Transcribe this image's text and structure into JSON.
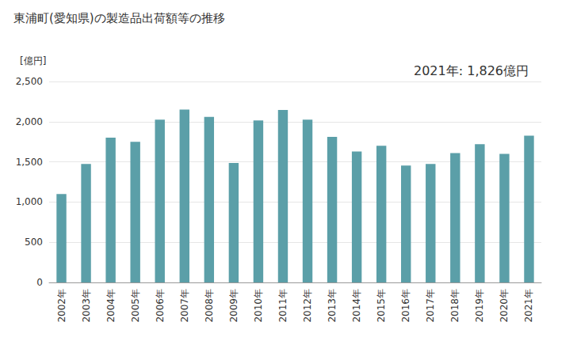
{
  "chart_data": {
    "type": "bar",
    "title": "東浦町(愛知県)の製造品出荷額等の推移",
    "y_label": "[億円]",
    "annotation": "2021年: 1,826億円",
    "categories": [
      "2002年",
      "2003年",
      "2004年",
      "2005年",
      "2006年",
      "2007年",
      "2008年",
      "2009年",
      "2010年",
      "2011年",
      "2012年",
      "2013年",
      "2014年",
      "2015年",
      "2016年",
      "2017年",
      "2018年",
      "2019年",
      "2020年",
      "2021年"
    ],
    "values": [
      1100,
      1475,
      1800,
      1750,
      2025,
      2150,
      2060,
      1485,
      2015,
      2145,
      2025,
      1810,
      1630,
      1700,
      1455,
      1475,
      1610,
      1720,
      1600,
      1826
    ],
    "color": "#5b9fa8",
    "ylim": [
      0,
      2500
    ],
    "yticks": [
      0,
      500,
      {
        "value": 1000,
        "label": "1,000"
      },
      {
        "value": 1500,
        "label": "1,500"
      },
      {
        "value": 2000,
        "label": "2,000"
      },
      {
        "value": 2500,
        "label": "2,500"
      }
    ],
    "grid": true
  }
}
